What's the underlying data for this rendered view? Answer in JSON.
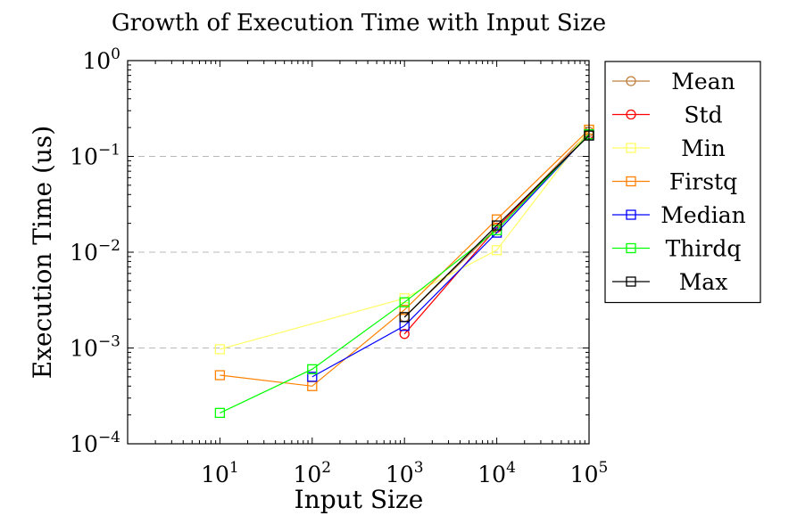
{
  "chart_data": {
    "type": "line",
    "title": "Growth of Execution Time with Input Size",
    "xlabel": "Input Size",
    "ylabel": "Execution Time (us)",
    "x_scale": "log",
    "y_scale": "log",
    "xlim": [
      1,
      100000
    ],
    "ylim": [
      0.0001,
      1
    ],
    "x_ticks": [
      10,
      100,
      1000,
      10000,
      100000
    ],
    "x_tick_labels": [
      [
        "10",
        "1"
      ],
      [
        "10",
        "2"
      ],
      [
        "10",
        "3"
      ],
      [
        "10",
        "4"
      ],
      [
        "10",
        "5"
      ]
    ],
    "y_ticks": [
      0.0001,
      0.001,
      0.01,
      0.1,
      1
    ],
    "y_tick_labels": [
      [
        "10",
        "−4"
      ],
      [
        "10",
        "−3"
      ],
      [
        "10",
        "−2"
      ],
      [
        "10",
        "−1"
      ],
      [
        "10",
        "0"
      ]
    ],
    "grid": "horizontal dashed at major y ticks",
    "legend_position": "outside-right-top",
    "series": [
      {
        "name": "Mean",
        "color": "#c08040",
        "marker": "circle",
        "x": [
          1000,
          10000,
          100000
        ],
        "y": [
          0.0021,
          0.018,
          0.18
        ]
      },
      {
        "name": "Std",
        "color": "#ff0000",
        "marker": "circle",
        "x": [
          1000,
          10000,
          100000
        ],
        "y": [
          0.0014,
          0.018,
          0.17
        ]
      },
      {
        "name": "Min",
        "color": "#ffff66",
        "marker": "square",
        "x": [
          10,
          1000,
          10000,
          100000
        ],
        "y": [
          0.00097,
          0.0033,
          0.0105,
          0.19
        ]
      },
      {
        "name": "Firstq",
        "color": "#ff8000",
        "marker": "square",
        "x": [
          10,
          100,
          1000,
          10000,
          100000
        ],
        "y": [
          0.00052,
          0.0004,
          0.0025,
          0.022,
          0.19
        ]
      },
      {
        "name": "Median",
        "color": "#0000ff",
        "marker": "square",
        "x": [
          100,
          1000,
          10000,
          100000
        ],
        "y": [
          0.0005,
          0.0017,
          0.016,
          0.17
        ]
      },
      {
        "name": "Thirdq",
        "color": "#00ff00",
        "marker": "square",
        "x": [
          10,
          100,
          1000,
          10000,
          100000
        ],
        "y": [
          0.00021,
          0.0006,
          0.003,
          0.017,
          0.17
        ]
      },
      {
        "name": "Max",
        "color": "#000000",
        "marker": "square",
        "x": [
          1000,
          10000,
          100000
        ],
        "y": [
          0.0021,
          0.019,
          0.165
        ]
      }
    ]
  }
}
